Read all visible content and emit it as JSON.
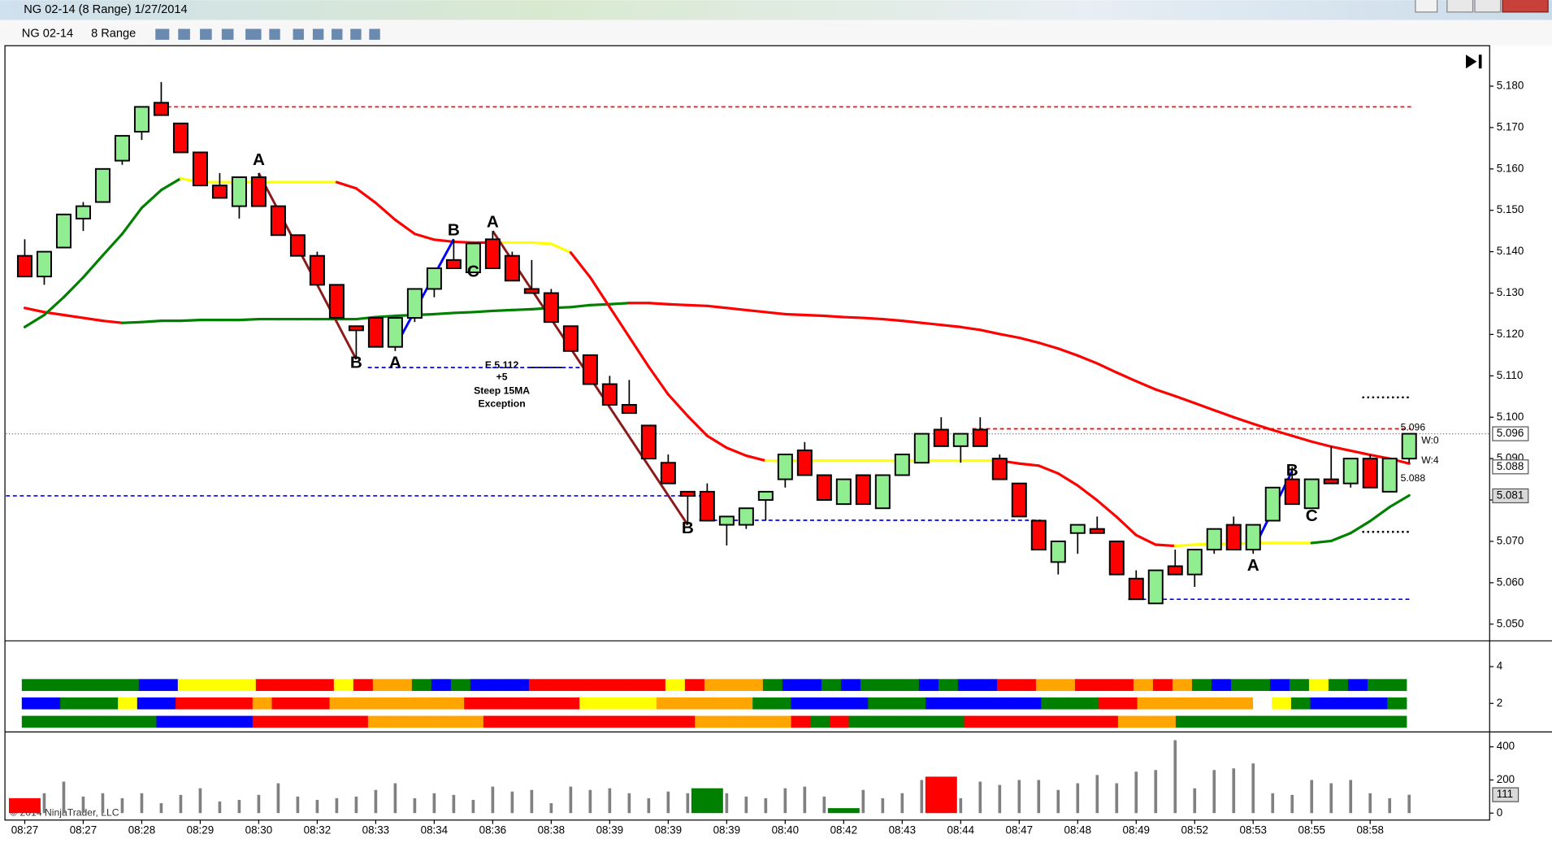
{
  "window": {
    "title": "NG 02-14 (8 Range)  1/27/2014",
    "instrument": "NG 02-14",
    "period": "8 Range",
    "copyright": "© 2014 NinjaTrader, LLC",
    "signal_note": [
      "E 5.112",
      "+5",
      "Steep 15MA",
      "Exception"
    ],
    "side_tags": [
      "W:0",
      "W:4"
    ]
  },
  "chart_data": {
    "type": "candlestick",
    "categories": [
      "08:27",
      null,
      null,
      "08:27",
      null,
      null,
      "08:28",
      null,
      null,
      "08:29",
      null,
      null,
      "08:30",
      null,
      null,
      "08:32",
      null,
      null,
      "08:33",
      null,
      null,
      "08:34",
      null,
      null,
      "08:36",
      null,
      null,
      "08:38",
      null,
      null,
      "08:39",
      null,
      null,
      "08:39",
      null,
      null,
      "08:39",
      null,
      null,
      "08:40",
      null,
      null,
      "08:42",
      null,
      null,
      "08:43",
      null,
      null,
      "08:44",
      null,
      null,
      "08:47",
      null,
      null,
      "08:48",
      null,
      null,
      "08:49",
      null,
      null,
      "08:52",
      null,
      null,
      "08:53",
      null,
      null,
      "08:55",
      null,
      null,
      "08:58",
      null,
      null
    ],
    "open": [
      5.139,
      5.134,
      5.141,
      5.148,
      5.152,
      5.162,
      5.169,
      5.176,
      5.171,
      5.164,
      5.156,
      5.151,
      5.158,
      5.151,
      5.144,
      5.139,
      5.132,
      5.122,
      5.124,
      5.117,
      5.124,
      5.131,
      5.138,
      5.135,
      5.143,
      5.139,
      5.131,
      5.13,
      5.122,
      5.115,
      5.108,
      5.103,
      5.098,
      5.089,
      5.082,
      5.082,
      5.074,
      5.074,
      5.08,
      5.085,
      5.092,
      5.086,
      5.079,
      5.086,
      5.078,
      5.086,
      5.089,
      5.097,
      5.093,
      5.097,
      5.09,
      5.084,
      5.075,
      5.065,
      5.072,
      5.073,
      5.07,
      5.061,
      5.055,
      5.064,
      5.062,
      5.068,
      5.074,
      5.068,
      5.075,
      5.085,
      5.078,
      5.085,
      5.084,
      5.09,
      5.082,
      5.09
    ],
    "high": [
      5.143,
      5.14,
      5.149,
      5.152,
      5.16,
      5.168,
      5.175,
      5.181,
      5.171,
      5.164,
      5.159,
      5.158,
      5.159,
      5.151,
      5.144,
      5.14,
      5.132,
      5.122,
      5.124,
      5.124,
      5.131,
      5.136,
      5.143,
      5.142,
      5.145,
      5.14,
      5.138,
      5.131,
      5.122,
      5.115,
      5.11,
      5.109,
      5.098,
      5.091,
      5.082,
      5.084,
      5.076,
      5.078,
      5.082,
      5.091,
      5.094,
      5.086,
      5.085,
      5.086,
      5.086,
      5.091,
      5.096,
      5.1,
      5.096,
      5.1,
      5.091,
      5.084,
      5.075,
      5.07,
      5.074,
      5.076,
      5.07,
      5.063,
      5.063,
      5.068,
      5.068,
      5.073,
      5.076,
      5.074,
      5.083,
      5.088,
      5.085,
      5.093,
      5.09,
      5.091,
      5.09,
      5.096
    ],
    "low": [
      5.134,
      5.132,
      5.141,
      5.145,
      5.152,
      5.161,
      5.167,
      5.173,
      5.164,
      5.156,
      5.153,
      5.148,
      5.151,
      5.144,
      5.139,
      5.132,
      5.124,
      5.114,
      5.117,
      5.116,
      5.123,
      5.129,
      5.136,
      5.135,
      5.136,
      5.133,
      5.13,
      5.123,
      5.116,
      5.108,
      5.103,
      5.101,
      5.09,
      5.084,
      5.074,
      5.075,
      5.069,
      5.073,
      5.075,
      5.083,
      5.086,
      5.08,
      5.079,
      5.079,
      5.078,
      5.086,
      5.089,
      5.093,
      5.089,
      5.093,
      5.085,
      5.076,
      5.068,
      5.062,
      5.067,
      5.072,
      5.062,
      5.056,
      5.055,
      5.062,
      5.059,
      5.067,
      5.068,
      5.067,
      5.075,
      5.079,
      5.078,
      5.084,
      5.083,
      5.083,
      5.082,
      5.089
    ],
    "close": [
      5.134,
      5.14,
      5.149,
      5.151,
      5.16,
      5.168,
      5.175,
      5.173,
      5.164,
      5.156,
      5.153,
      5.158,
      5.151,
      5.144,
      5.139,
      5.132,
      5.124,
      5.121,
      5.117,
      5.124,
      5.131,
      5.136,
      5.136,
      5.142,
      5.136,
      5.133,
      5.13,
      5.123,
      5.116,
      5.108,
      5.103,
      5.101,
      5.09,
      5.084,
      5.081,
      5.075,
      5.076,
      5.078,
      5.082,
      5.091,
      5.086,
      5.08,
      5.085,
      5.079,
      5.086,
      5.091,
      5.096,
      5.093,
      5.096,
      5.093,
      5.085,
      5.076,
      5.068,
      5.07,
      5.074,
      5.072,
      5.062,
      5.056,
      5.063,
      5.062,
      5.068,
      5.073,
      5.068,
      5.074,
      5.083,
      5.079,
      5.085,
      5.084,
      5.09,
      5.083,
      5.09,
      5.096
    ],
    "up_color": "#90ee90",
    "down_color": "#ff0000",
    "ylim": [
      5.0462,
      5.1893
    ],
    "yticks": [
      {
        "value": 5.05,
        "label": "5.050"
      },
      {
        "value": 5.06,
        "label": "5.060"
      },
      {
        "value": 5.07,
        "label": "5.070"
      },
      {
        "value": 5.08,
        "label": "5.080"
      },
      {
        "value": 5.09,
        "label": "5.090"
      },
      {
        "value": 5.1,
        "label": "5.100"
      },
      {
        "value": 5.11,
        "label": "5.110"
      },
      {
        "value": 5.12,
        "label": "5.120"
      },
      {
        "value": 5.13,
        "label": "5.130"
      },
      {
        "value": 5.14,
        "label": "5.140"
      },
      {
        "value": 5.15,
        "label": "5.150"
      },
      {
        "value": 5.16,
        "label": "5.160"
      },
      {
        "value": 5.17,
        "label": "5.170"
      },
      {
        "value": 5.18,
        "label": "5.180"
      }
    ],
    "palette": {
      "g": "#008000",
      "b": "#0000ff",
      "y": "#ffff00",
      "r": "#ff0000",
      "o": "#ffa500",
      "k": "#808080"
    },
    "fast_ma": {
      "values": [
        5.1218,
        5.1247,
        5.129,
        5.1338,
        5.1391,
        5.1443,
        5.1506,
        5.1549,
        5.1577,
        5.1568,
        5.1568,
        5.1568,
        5.1568,
        5.1568,
        5.1568,
        5.1568,
        5.1568,
        5.1553,
        5.1518,
        5.1477,
        5.1443,
        5.1429,
        5.1424,
        5.1422,
        5.1422,
        5.1422,
        5.1422,
        5.1419,
        5.1398,
        5.1338,
        5.1266,
        5.1194,
        5.1122,
        5.1055,
        5.1003,
        5.0955,
        5.0926,
        5.0907,
        5.0895,
        5.0895,
        5.0895,
        5.0895,
        5.0895,
        5.0895,
        5.0895,
        5.0895,
        5.0895,
        5.0895,
        5.0895,
        5.0895,
        5.0895,
        5.0888,
        5.0883,
        5.0864,
        5.0835,
        5.0799,
        5.0759,
        5.0715,
        5.0692,
        5.0689,
        5.0692,
        5.0694,
        5.0694,
        5.0696,
        5.0696,
        5.0696,
        5.0696,
        5.0701,
        5.072,
        5.0749,
        5.0783,
        5.0811
      ],
      "colors": "ggggggggyyyyyyyyrrrrrrrryyyyrrrrrrrrrryyyyyyyyyyyyrrrrrrrrryyyyyyyggggg"
    },
    "slow_ma": {
      "values": [
        5.1264,
        5.1254,
        5.1247,
        5.124,
        5.1233,
        5.1228,
        5.123,
        5.1233,
        5.1233,
        5.1235,
        5.1235,
        5.1235,
        5.1237,
        5.1237,
        5.1237,
        5.1237,
        5.1237,
        5.1237,
        5.1242,
        5.1245,
        5.1247,
        5.1249,
        5.1252,
        5.1254,
        5.1257,
        5.1259,
        5.1261,
        5.1264,
        5.1266,
        5.1271,
        5.1273,
        5.1276,
        5.1276,
        5.1273,
        5.1271,
        5.1269,
        5.1264,
        5.1259,
        5.1254,
        5.1249,
        5.1247,
        5.1245,
        5.1242,
        5.124,
        5.1237,
        5.1233,
        5.1228,
        5.1223,
        5.1218,
        5.1211,
        5.1201,
        5.1192,
        5.118,
        5.1166,
        5.1149,
        5.113,
        5.1108,
        5.1087,
        5.1067,
        5.1051,
        5.1034,
        5.1017,
        5.1,
        5.0984,
        5.0969,
        5.0955,
        5.0941,
        5.0929,
        5.0919,
        5.0909,
        5.09,
        5.0888
      ],
      "colors": "rrrrrggggggggggggggggggggggggggrrrrrrrrrrrrrrrrrrrrrrrrrrrrrrrrrrrrrrrr"
    },
    "levels": [
      {
        "value": 5.175,
        "color": "#ff0000",
        "from": 7,
        "to": 71
      },
      {
        "value": 5.0972,
        "color": "#ff0000",
        "from": 49,
        "to": 71
      },
      {
        "value": 5.081,
        "color": "#0000ff",
        "from": 0,
        "to": 35
      },
      {
        "value": 5.112,
        "color": "#0000ff",
        "from": 18,
        "to": 29
      },
      {
        "value": 5.0751,
        "color": "#0000ff",
        "from": 35,
        "to": 52
      },
      {
        "value": 5.056,
        "color": "#0000ff",
        "from": 57,
        "to": 71
      },
      {
        "value": 5.1048,
        "color": "#000000",
        "from": 69,
        "to": 71
      },
      {
        "value": 5.0723,
        "color": "#000000",
        "from": 69,
        "to": 71
      }
    ],
    "last_price": 5.096,
    "price_markers": [
      5.096,
      5.088,
      5.081
    ],
    "zigzag": [
      {
        "color": "#8b1a1a",
        "x": [
          12,
          17
        ],
        "y": [
          5.159,
          5.114
        ]
      },
      {
        "color": "#0000ff",
        "x": [
          19,
          22
        ],
        "y": [
          5.117,
          5.143
        ]
      },
      {
        "color": "#8b1a1a",
        "x": [
          24,
          34
        ],
        "y": [
          5.145,
          5.074
        ]
      },
      {
        "color": "#0000ff",
        "x": [
          63,
          65
        ],
        "y": [
          5.068,
          5.087
        ]
      }
    ],
    "wave_labels": [
      {
        "text": "A",
        "index": 12,
        "price": 5.162
      },
      {
        "text": "B",
        "index": 17,
        "price": 5.113
      },
      {
        "text": "A",
        "index": 19,
        "price": 5.113
      },
      {
        "text": "B",
        "index": 22,
        "price": 5.145
      },
      {
        "text": "C",
        "index": 23,
        "price": 5.135
      },
      {
        "text": "A",
        "index": 24,
        "price": 5.147
      },
      {
        "text": "B",
        "index": 34,
        "price": 5.073
      },
      {
        "text": "A",
        "index": 63,
        "price": 5.064
      },
      {
        "text": "B",
        "index": 65,
        "price": 5.087
      },
      {
        "text": "C",
        "index": 66,
        "price": 5.076
      }
    ],
    "indicator": {
      "ylim": [
        0.5,
        5.35
      ],
      "yticks": [
        2,
        4
      ],
      "rows": [
        {
          "level": 3,
          "colors": "ggggggbbyyyyrrrryroogbgbbbrrrrrrryrooogbbgbgggbgbbrroorrrorogbggbgygbgg"
        },
        {
          "level": 2,
          "colors": "bbgggybbrrrrorrrooooooorrrrrryyyyoooooggbbbbgggbbbbbbgggrroooooo ygbbbbg"
        },
        {
          "level": 1,
          "colors": "gggggggbbbbbrrrrrroooooorrrrrrrrrrrooooorgrggggggrrrrrrrrooogggggggggggg"
        }
      ]
    },
    "volume": {
      "values": [
        90,
        120,
        190,
        100,
        120,
        90,
        120,
        60,
        110,
        150,
        70,
        80,
        110,
        180,
        100,
        80,
        90,
        100,
        140,
        180,
        90,
        120,
        110,
        80,
        160,
        130,
        140,
        60,
        160,
        140,
        150,
        120,
        90,
        130,
        120,
        150,
        120,
        100,
        90,
        150,
        160,
        100,
        30,
        140,
        90,
        120,
        200,
        220,
        90,
        190,
        170,
        200,
        200,
        140,
        180,
        230,
        180,
        250,
        260,
        440,
        150,
        260,
        270,
        300,
        120,
        110,
        200,
        180,
        200,
        120,
        90,
        111
      ],
      "colors": "rkkkkkkkkkkkkkkkkkkkkkkkkkkkkkkkkkkgkkkkkkgkkkkrkkkkkkkkkkkkkkkkkkkkkkkk",
      "ylim": [
        -42,
        484
      ],
      "yticks": [
        0,
        200,
        400
      ]
    }
  }
}
